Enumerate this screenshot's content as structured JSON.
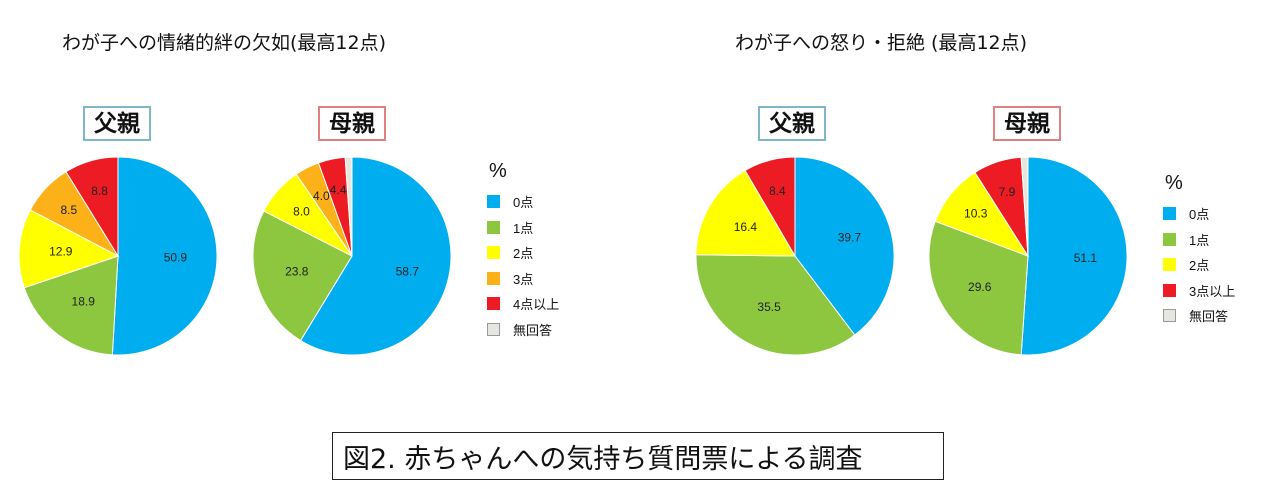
{
  "sections": {
    "left_title": "わが子への情緒的絆の欠如(最高12点)",
    "right_title": "わが子への怒り・拒絶 (最高12点)"
  },
  "labels": {
    "father": "父親",
    "mother": "母親"
  },
  "legend_left": {
    "unit": "%",
    "items": [
      {
        "label": "0点",
        "color": "#00aeef"
      },
      {
        "label": "1点",
        "color": "#8dc63f"
      },
      {
        "label": "2点",
        "color": "#ffff00"
      },
      {
        "label": "3点",
        "color": "#fbb117"
      },
      {
        "label": "4点以上",
        "color": "#ed1c24"
      },
      {
        "label": "無回答",
        "color": "#e6e6e0"
      }
    ]
  },
  "legend_right": {
    "unit": "%",
    "items": [
      {
        "label": "0点",
        "color": "#00aeef"
      },
      {
        "label": "1点",
        "color": "#8dc63f"
      },
      {
        "label": "2点",
        "color": "#ffff00"
      },
      {
        "label": "3点以上",
        "color": "#ed1c24"
      },
      {
        "label": "無回答",
        "color": "#e6e6e0"
      }
    ]
  },
  "caption": "図2. 赤ちゃんへの気持ち質問票による調査",
  "chart_data": [
    {
      "type": "pie",
      "title": "わが子への情緒的絆の欠如(最高12点)",
      "subtitle": "父親",
      "categories": [
        "0点",
        "1点",
        "2点",
        "3点",
        "4点以上",
        "無回答"
      ],
      "values": [
        50.9,
        18.9,
        12.9,
        8.5,
        8.8,
        0
      ],
      "colors": [
        "#00aeef",
        "#8dc63f",
        "#ffff00",
        "#fbb117",
        "#ed1c24",
        "#e6e6e0"
      ],
      "data_labels": [
        "50.9",
        "18.9",
        "12.9",
        "8.5",
        "8.8",
        ""
      ]
    },
    {
      "type": "pie",
      "title": "わが子への情緒的絆の欠如(最高12点)",
      "subtitle": "母親",
      "categories": [
        "0点",
        "1点",
        "2点",
        "3点",
        "4点以上",
        "無回答"
      ],
      "values": [
        58.7,
        23.8,
        8.0,
        4.0,
        4.4,
        1.1
      ],
      "colors": [
        "#00aeef",
        "#8dc63f",
        "#ffff00",
        "#fbb117",
        "#ed1c24",
        "#e6e6e0"
      ],
      "data_labels": [
        "58.7",
        "23.8",
        "8.0",
        "4.0",
        "4.4",
        ""
      ]
    },
    {
      "type": "pie",
      "title": "わが子への怒り・拒絶 (最高12点)",
      "subtitle": "父親",
      "categories": [
        "0点",
        "1点",
        "2点",
        "3点以上",
        "無回答"
      ],
      "values": [
        39.7,
        35.5,
        16.4,
        8.4,
        0
      ],
      "colors": [
        "#00aeef",
        "#8dc63f",
        "#ffff00",
        "#ed1c24",
        "#e6e6e0"
      ],
      "data_labels": [
        "39.7",
        "35.5",
        "16.4",
        "8.4",
        ""
      ]
    },
    {
      "type": "pie",
      "title": "わが子への怒り・拒絶 (最高12点)",
      "subtitle": "母親",
      "categories": [
        "0点",
        "1点",
        "2点",
        "3点以上",
        "無回答"
      ],
      "values": [
        51.1,
        29.6,
        10.3,
        7.9,
        1.1
      ],
      "colors": [
        "#00aeef",
        "#8dc63f",
        "#ffff00",
        "#ed1c24",
        "#e6e6e0"
      ],
      "data_labels": [
        "51.1",
        "29.6",
        "10.3",
        "7.9",
        ""
      ]
    }
  ]
}
